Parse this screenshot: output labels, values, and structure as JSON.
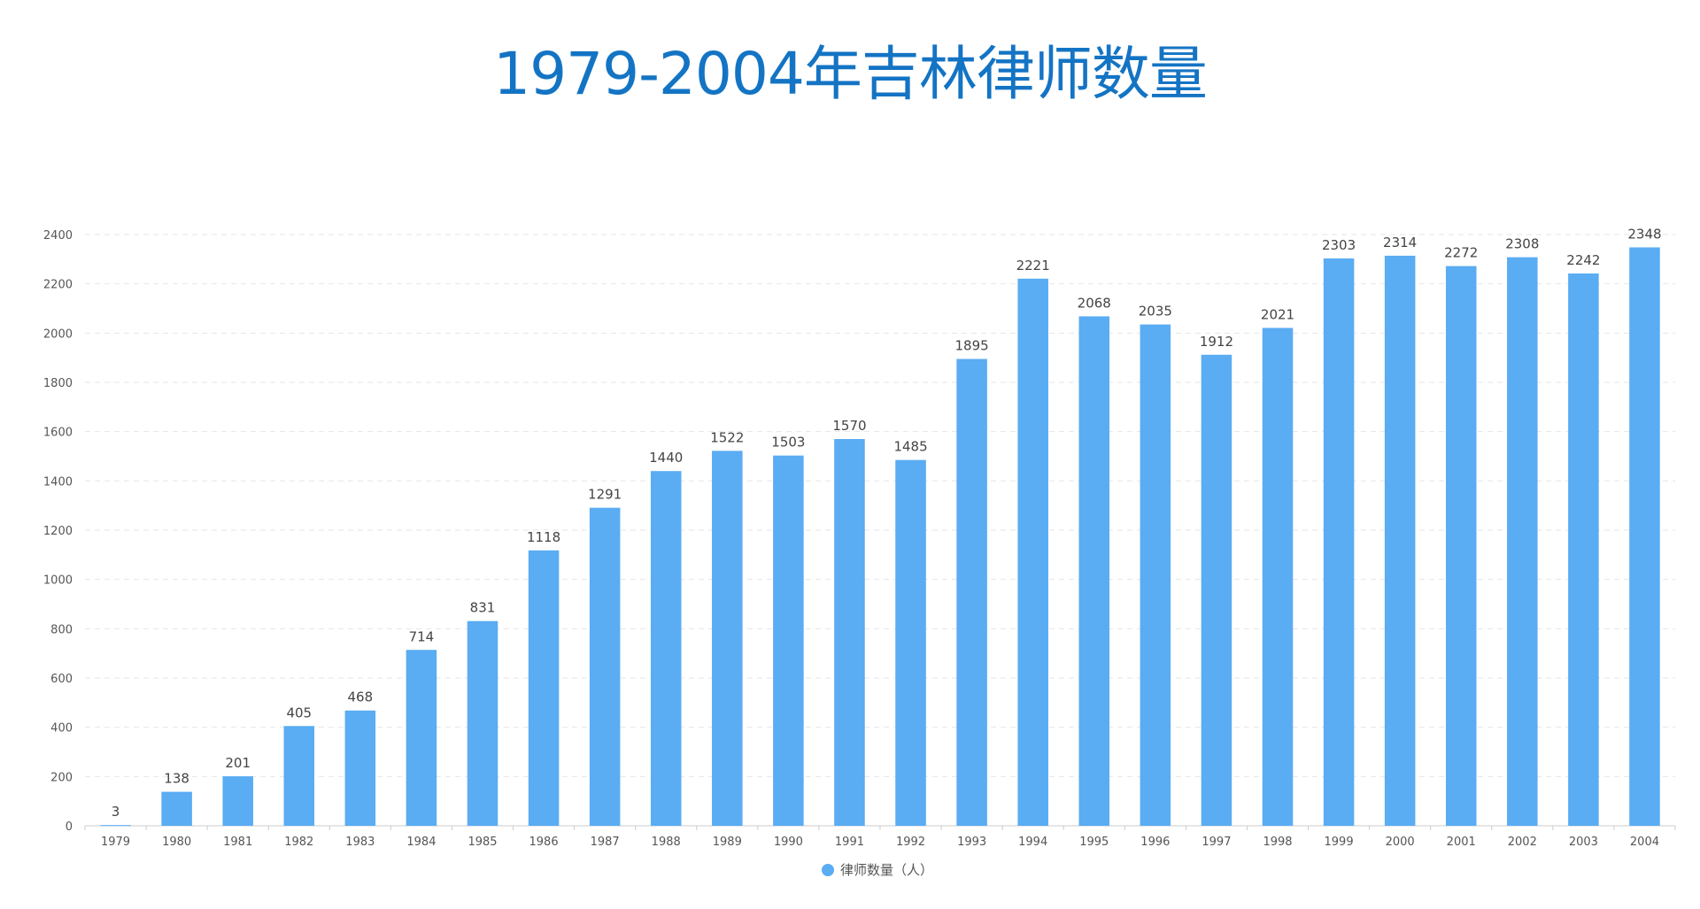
{
  "chart_data": {
    "type": "bar",
    "title": "1979-2004年吉林律师数量",
    "categories": [
      "1979",
      "1980",
      "1981",
      "1982",
      "1983",
      "1984",
      "1985",
      "1986",
      "1987",
      "1988",
      "1989",
      "1990",
      "1991",
      "1992",
      "1993",
      "1994",
      "1995",
      "1996",
      "1997",
      "1998",
      "1999",
      "2000",
      "2001",
      "2002",
      "2003",
      "2004"
    ],
    "series": [
      {
        "name": "律师数量（人）",
        "values": [
          3,
          138,
          201,
          405,
          468,
          714,
          831,
          1118,
          1291,
          1440,
          1522,
          1503,
          1570,
          1485,
          1895,
          2221,
          2068,
          2035,
          1912,
          2021,
          2303,
          2314,
          2272,
          2308,
          2242,
          2348
        ]
      }
    ],
    "y_ticks": [
      "0",
      "200",
      "400",
      "600",
      "800",
      "1000",
      "1200",
      "1400",
      "1600",
      "1800",
      "2000",
      "2200",
      "2400"
    ],
    "ylim": [
      0,
      2400
    ],
    "grid": true,
    "legend_position": "bottom-center",
    "colors": {
      "bar": "#5aacf3",
      "title": "#1474c4",
      "grid": "#e6e6e6",
      "axis": "#cccccc"
    }
  }
}
